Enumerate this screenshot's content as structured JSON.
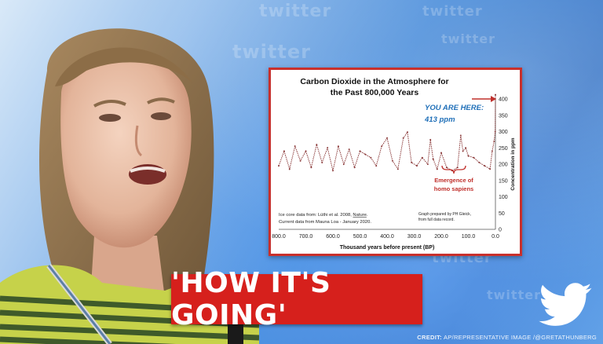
{
  "watermark": {
    "word": "twitter"
  },
  "banner": {
    "text": "'HOW IT'S GOING'"
  },
  "credit": {
    "label": "CREDIT:",
    "text": "AP/REPRESENTATIVE IMAGE /@GRETATHUNBERG"
  },
  "chart_data": {
    "type": "line",
    "title": "Carbon Dioxide in the Atmosphere for the Past 800,000 Years",
    "title_lines": [
      "Carbon Dioxide in the Atmosphere for",
      "the Past 800,000 Years"
    ],
    "xlabel": "Thousand years before present (BP)",
    "ylabel": "Concentration in ppm",
    "xlim": [
      800,
      0
    ],
    "ylim": [
      0,
      400
    ],
    "x_ticks": [
      "800.0",
      "700.0",
      "600.0",
      "500.0",
      "400.0",
      "300.0",
      "200.0",
      "100.0",
      "0.0"
    ],
    "y_ticks": [
      "0",
      "50",
      "100",
      "150",
      "200",
      "250",
      "300",
      "350",
      "400"
    ],
    "annotations": {
      "you_are_here": "YOU ARE HERE:",
      "current_value": "413 ppm",
      "emergence_line1": "Emergence of",
      "emergence_line2": "homo sapiens",
      "source_line1": "Ice core data from: Lüthi et al. 2008, ",
      "source_journal": "Nature",
      "source_line1_end": ".",
      "source_line2": "Current data from Mauna Loa - January 2020.",
      "prepared_line1": "Graph prepared by PH Gleick,",
      "prepared_line2": "from full data record."
    },
    "x": [
      800,
      780,
      760,
      740,
      720,
      700,
      680,
      660,
      640,
      620,
      600,
      580,
      560,
      540,
      520,
      500,
      480,
      460,
      440,
      420,
      400,
      380,
      360,
      340,
      325,
      310,
      290,
      270,
      250,
      240,
      230,
      215,
      200,
      180,
      160,
      140,
      128,
      120,
      110,
      100,
      80,
      60,
      40,
      20,
      12,
      5,
      1,
      0
    ],
    "y": [
      195,
      240,
      185,
      255,
      210,
      240,
      190,
      260,
      205,
      250,
      180,
      255,
      200,
      245,
      190,
      240,
      230,
      220,
      195,
      255,
      280,
      210,
      185,
      280,
      298,
      205,
      195,
      220,
      200,
      275,
      215,
      185,
      235,
      190,
      180,
      190,
      288,
      240,
      250,
      225,
      220,
      205,
      195,
      185,
      240,
      270,
      300,
      413
    ]
  },
  "colors": {
    "banner_red": "#d6201c",
    "chart_border": "#c9302c",
    "annotation_blue": "#1f6fb8",
    "annotation_red": "#c0302c",
    "series": "#8b3a3a"
  }
}
